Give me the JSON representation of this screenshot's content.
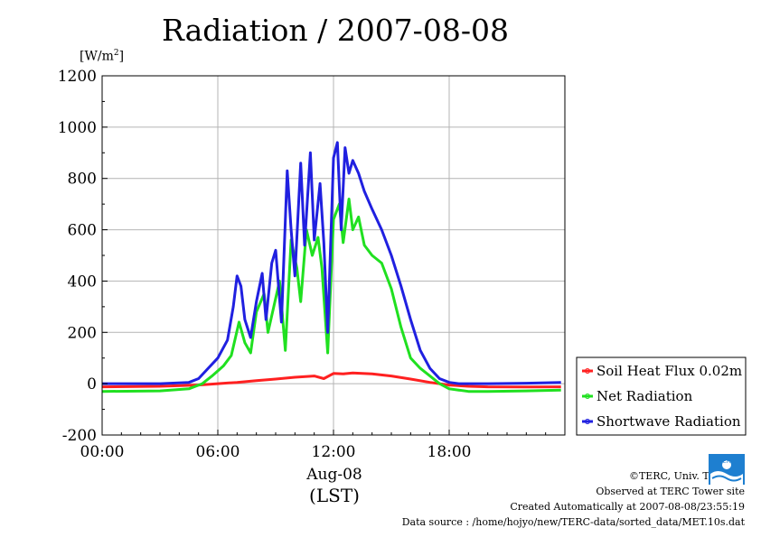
{
  "page": {
    "title": "Radiation / 2007-08-08",
    "unit_prefix": "[W/m",
    "unit_exp": "2",
    "unit_suffix": "]",
    "date_label": "Aug-08",
    "time_label": "(LST)",
    "credits": [
      "©TERC, Univ. Tsukuba",
      "Observed at TERC Tower site",
      "Created Automatically at 2007-08-08/23:55:19",
      "Data source : /home/hojyo/new/TERC-data/sorted_data/MET.10s.dat"
    ],
    "logo_text": "TERC",
    "colors": {
      "blue": "#2020e0",
      "green": "#20e020",
      "red": "#ff2020",
      "grid": "#b4b4b4"
    }
  },
  "chart_data": {
    "type": "line",
    "xlabel": "(LST)",
    "ylabel": "[W/m2]",
    "xlim": [
      0,
      24
    ],
    "ylim": [
      -200,
      1200
    ],
    "xticks": [
      0,
      6,
      12,
      18
    ],
    "xtick_labels": [
      "00:00",
      "06:00",
      "12:00",
      "18:00"
    ],
    "yticks": [
      -200,
      0,
      200,
      400,
      600,
      800,
      1000,
      1200
    ],
    "ytick_labels": [
      "-200",
      "0",
      "200",
      "400",
      "600",
      "800",
      "1000",
      "1200"
    ],
    "grid": true,
    "legend_position": "right",
    "series": [
      {
        "name": "Soil Heat Flux 0.02m",
        "color": "#ff2020",
        "x": [
          0,
          3,
          5,
          6,
          7,
          8,
          9,
          10,
          11,
          11.5,
          12,
          12.5,
          13,
          14,
          15,
          16,
          17,
          18,
          19,
          20,
          22,
          23.8
        ],
        "y": [
          -12,
          -10,
          -5,
          0,
          5,
          12,
          18,
          25,
          30,
          20,
          40,
          38,
          42,
          38,
          30,
          18,
          5,
          -5,
          -10,
          -12,
          -13,
          -12
        ]
      },
      {
        "name": "Net Radiation",
        "color": "#20e020",
        "x": [
          0,
          3,
          4.5,
          5.2,
          5.7,
          6.3,
          6.7,
          7.1,
          7.4,
          7.7,
          8.0,
          8.4,
          8.6,
          8.9,
          9.2,
          9.5,
          9.8,
          10.1,
          10.3,
          10.6,
          10.9,
          11.2,
          11.4,
          11.7,
          12.0,
          12.3,
          12.5,
          12.8,
          13.0,
          13.3,
          13.6,
          14.0,
          14.5,
          15.0,
          15.5,
          16.0,
          16.5,
          17.0,
          17.5,
          18.0,
          19,
          20,
          22,
          23.8
        ],
        "y": [
          -30,
          -28,
          -20,
          0,
          30,
          70,
          110,
          240,
          160,
          120,
          280,
          350,
          200,
          300,
          400,
          130,
          560,
          450,
          320,
          600,
          500,
          570,
          450,
          120,
          640,
          700,
          550,
          720,
          600,
          650,
          540,
          500,
          470,
          370,
          220,
          100,
          60,
          30,
          0,
          -20,
          -30,
          -30,
          -28,
          -25
        ]
      },
      {
        "name": "Shortwave Radiation",
        "color": "#2020e0",
        "x": [
          0,
          3,
          4.5,
          5.0,
          5.5,
          6.0,
          6.5,
          6.8,
          7.0,
          7.2,
          7.4,
          7.7,
          8.0,
          8.3,
          8.5,
          8.8,
          9.0,
          9.3,
          9.6,
          9.8,
          10.0,
          10.3,
          10.5,
          10.8,
          11.0,
          11.3,
          11.5,
          11.7,
          12.0,
          12.2,
          12.4,
          12.6,
          12.8,
          13.0,
          13.3,
          13.6,
          14.0,
          14.5,
          15.0,
          15.5,
          16.0,
          16.5,
          17.0,
          17.5,
          18.0,
          18.5,
          19,
          20,
          22,
          23.8
        ],
        "y": [
          0,
          0,
          5,
          20,
          60,
          100,
          170,
          300,
          420,
          380,
          250,
          180,
          320,
          430,
          250,
          470,
          520,
          240,
          830,
          600,
          420,
          860,
          540,
          900,
          560,
          780,
          550,
          200,
          880,
          940,
          600,
          920,
          820,
          870,
          820,
          750,
          680,
          600,
          500,
          380,
          250,
          130,
          60,
          20,
          5,
          0,
          0,
          0,
          2,
          5
        ]
      }
    ]
  }
}
